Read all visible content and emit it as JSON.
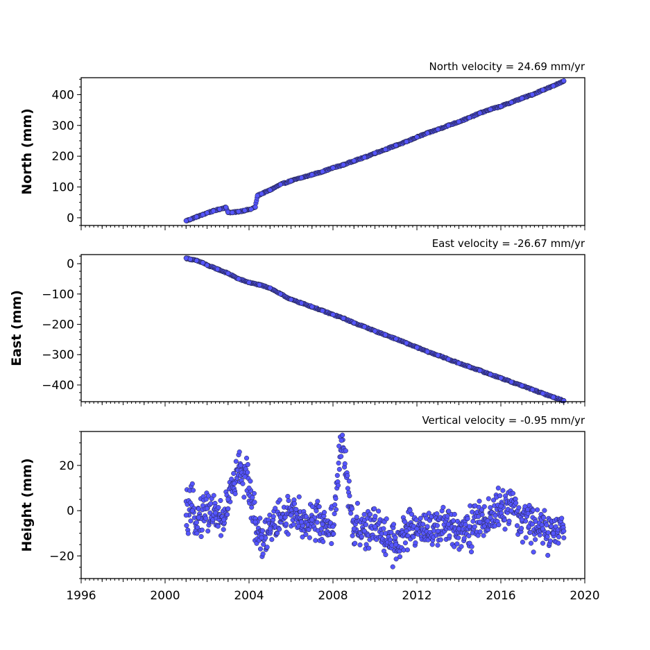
{
  "colors": {
    "marker_fill": "#5555ff",
    "marker_edge": "#20203a",
    "axis": "#000000"
  },
  "chart_data": [
    {
      "type": "scatter",
      "title": "North velocity = 24.69 mm/yr",
      "ylabel": "North (mm)",
      "xlim": [
        1996,
        2020
      ],
      "ylim": [
        -25,
        455
      ],
      "y_ticks": [
        0,
        100,
        200,
        300,
        400
      ],
      "y_tick_labels": [
        "0",
        "100",
        "200",
        "300",
        "400"
      ],
      "series": [
        {
          "x": [
            2001.0,
            2001.2,
            2001.5,
            2001.8,
            2002.0,
            2002.3,
            2002.6,
            2002.9,
            2003.0,
            2003.2,
            2003.5,
            2003.8,
            2004.1,
            2004.3,
            2004.4,
            2004.6,
            2005.0,
            2005.5,
            2006.0,
            2006.5,
            2007.0,
            2007.5,
            2008.0,
            2008.5,
            2009.0,
            2009.5,
            2010.0,
            2010.5,
            2011.0,
            2011.5,
            2012.0,
            2012.5,
            2013.0,
            2013.5,
            2014.0,
            2014.5,
            2015.0,
            2015.5,
            2016.0,
            2016.5,
            2017.0,
            2017.5,
            2018.0,
            2018.5,
            2019.0
          ],
          "y": [
            -10,
            -5,
            3,
            10,
            16,
            22,
            28,
            34,
            18,
            17,
            20,
            24,
            28,
            35,
            72,
            78,
            90,
            108,
            120,
            130,
            140,
            150,
            162,
            172,
            185,
            196,
            210,
            222,
            235,
            247,
            262,
            275,
            287,
            300,
            312,
            325,
            340,
            352,
            362,
            375,
            388,
            400,
            415,
            428,
            445
          ]
        }
      ]
    },
    {
      "type": "scatter",
      "title": "East velocity = -26.67 mm/yr",
      "ylabel": "East (mm)",
      "xlim": [
        1996,
        2020
      ],
      "ylim": [
        -455,
        30
      ],
      "y_ticks": [
        0,
        -100,
        -200,
        -300,
        -400
      ],
      "y_tick_labels": [
        "0",
        "−100",
        "−200",
        "−300",
        "−400"
      ],
      "series": [
        {
          "x": [
            2001.0,
            2001.2,
            2001.5,
            2001.8,
            2002.0,
            2002.5,
            2003.0,
            2003.5,
            2004.0,
            2004.5,
            2005.0,
            2005.5,
            2006.0,
            2006.5,
            2007.0,
            2007.5,
            2008.0,
            2008.5,
            2009.0,
            2009.5,
            2010.0,
            2010.5,
            2011.0,
            2011.5,
            2012.0,
            2012.5,
            2013.0,
            2013.5,
            2014.0,
            2014.5,
            2015.0,
            2015.5,
            2016.0,
            2016.5,
            2017.0,
            2017.5,
            2018.0,
            2018.5,
            2019.0
          ],
          "y": [
            18,
            15,
            10,
            3,
            -5,
            -18,
            -32,
            -50,
            -62,
            -70,
            -80,
            -100,
            -118,
            -130,
            -142,
            -155,
            -168,
            -180,
            -195,
            -208,
            -222,
            -235,
            -248,
            -262,
            -276,
            -290,
            -302,
            -315,
            -328,
            -340,
            -352,
            -365,
            -377,
            -390,
            -402,
            -415,
            -428,
            -440,
            -452
          ]
        }
      ]
    },
    {
      "type": "scatter",
      "title": "Vertical velocity = -0.95 mm/yr",
      "ylabel": "Height (mm)",
      "xlim": [
        1996,
        2020
      ],
      "ylim": [
        -30,
        35
      ],
      "y_ticks": [
        20,
        0,
        -20
      ],
      "y_tick_labels": [
        "20",
        "0",
        "−20"
      ],
      "x_ticks": [
        1996,
        2000,
        2004,
        2008,
        2012,
        2016,
        2020
      ],
      "x_tick_labels": [
        "1996",
        "2000",
        "2004",
        "2008",
        "2012",
        "2016",
        "2020"
      ],
      "series": [
        {
          "x": [
            2001.0,
            2001.3,
            2001.6,
            2002.0,
            2002.4,
            2002.8,
            2003.0,
            2003.3,
            2003.6,
            2003.8,
            2004.0,
            2004.3,
            2004.6,
            2005.0,
            2005.5,
            2006.0,
            2006.5,
            2007.0,
            2007.5,
            2008.0,
            2008.4,
            2009.0,
            2009.5,
            2010.0,
            2010.5,
            2011.0,
            2011.5,
            2012.0,
            2012.5,
            2013.0,
            2013.5,
            2014.0,
            2014.5,
            2015.0,
            2015.5,
            2016.0,
            2016.5,
            2017.0,
            2017.5,
            2018.0,
            2018.5,
            2019.0
          ],
          "y": [
            -2,
            0,
            -3,
            1,
            -1,
            -4,
            5,
            12,
            20,
            15,
            10,
            -5,
            -12,
            -8,
            -3,
            -2,
            -5,
            -4,
            -6,
            -7,
            31,
            -8,
            -9,
            -7,
            -10,
            -15,
            -9,
            -8,
            -7,
            -9,
            -6,
            -8,
            -7,
            -5,
            -3,
            2,
            0,
            -4,
            -6,
            -8,
            -10,
            -9
          ]
        }
      ]
    }
  ]
}
